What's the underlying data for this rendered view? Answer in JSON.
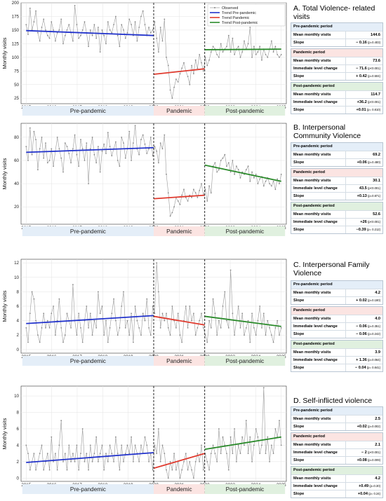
{
  "period_labels": [
    "Pre-pandemic",
    "Pandemic",
    "Post-pandemic"
  ],
  "legend": [
    {
      "label": "Observed",
      "color": "#9a9a9a"
    },
    {
      "label": "Trend Pre-pandemic",
      "color": "#2233cc"
    },
    {
      "label": "Trend Pandemic",
      "color": "#e03a2e"
    },
    {
      "label": "Trend Post-pandemic",
      "color": "#2a8a2a"
    }
  ],
  "colors": {
    "pre_band": "#e4eef8",
    "pandemic_band": "#fbe4e2",
    "post_band": "#e0f0df",
    "observed": "#9a9a9a"
  },
  "panels": [
    {
      "title": "A. Total Violence- related visits",
      "stats": [
        {
          "header": "Pre-pandemic period",
          "band": "pre",
          "rows": [
            {
              "label": "Mean monthly visits",
              "value": "144.6",
              "p": ""
            },
            {
              "label": "Slope",
              "value": "− 0.16",
              "p": "(p=0.403)"
            }
          ]
        },
        {
          "header": "Pandemic period",
          "band": "pan",
          "rows": [
            {
              "label": "Mean monthly visits",
              "value": "73.6",
              "p": ""
            },
            {
              "label": "Immediate level change",
              "value": "− 71.6",
              "p": "(p<0.001)"
            },
            {
              "label": "Slope",
              "value": "+ 0.42",
              "p": "(p=0.504)"
            }
          ]
        },
        {
          "header": "Post-pandemic period",
          "band": "post",
          "rows": [
            {
              "label": "Mean monthly visits",
              "value": "114.7",
              "p": ""
            },
            {
              "label": "Immediate level change",
              "value": "+36.2",
              "p": "(p<0.001)"
            },
            {
              "label": "Slope",
              "value": "+0.01",
              "p": "(p= 0.810)"
            }
          ]
        }
      ]
    },
    {
      "title": "B. Interpersonal Community Violence",
      "stats": [
        {
          "header": "Pre-pandemic period",
          "band": "pre",
          "rows": [
            {
              "label": "Mean monthly visits",
              "value": "69.2",
              "p": ""
            },
            {
              "label": "Slope",
              "value": "+0.06",
              "p": "(p=0.480)"
            }
          ]
        },
        {
          "header": "Pandemic period",
          "band": "pan",
          "rows": [
            {
              "label": "Mean monthly visits",
              "value": "30.1",
              "p": ""
            },
            {
              "label": "Immediate level change",
              "value": "43.5",
              "p": "(p<0.001)"
            },
            {
              "label": "Slope",
              "value": "+0.13",
              "p": "(p=0.871)"
            }
          ]
        },
        {
          "header": "Post-pandemic period",
          "band": "post",
          "rows": [
            {
              "label": "Mean monthly visits",
              "value": "52.6",
              "p": ""
            },
            {
              "label": "Immediate level change",
              "value": "+26",
              "p": "(p<0.001)"
            },
            {
              "label": "Slope",
              "value": "−0.39",
              "p": "(p= 0.212)"
            }
          ]
        }
      ]
    },
    {
      "title": "C. Interpersonal Family Violence",
      "stats": [
        {
          "header": "Pre-pandemic period",
          "band": "pre",
          "rows": [
            {
              "label": "Mean monthly visits",
              "value": "4.2",
              "p": ""
            },
            {
              "label": "Slope",
              "value": "+ 0.02",
              "p": "(p=0.180)"
            }
          ]
        },
        {
          "header": "Pandemic period",
          "band": "pan",
          "rows": [
            {
              "label": "Mean monthly visits",
              "value": "4.0",
              "p": ""
            },
            {
              "label": "Immediate level change",
              "value": "− 0.06",
              "p": "(p=0.351)"
            },
            {
              "label": "Slope",
              "value": "− 0.06",
              "p": "(p=0.242)"
            }
          ]
        },
        {
          "header": "Post-pandemic period",
          "band": "post",
          "rows": [
            {
              "label": "Mean monthly visits",
              "value": "3.9",
              "p": ""
            },
            {
              "label": "Immediate level change",
              "value": "+ 1.36",
              "p": "(p=0.064)"
            },
            {
              "label": "Slope",
              "value": "− 0.04",
              "p": "(p= 0.841)"
            }
          ]
        }
      ]
    },
    {
      "title": "D. Self-inflicted violence",
      "stats": [
        {
          "header": "Pre-pandemic period",
          "band": "pre",
          "rows": [
            {
              "label": "Mean monthly visits",
              "value": "2.5",
              "p": ""
            },
            {
              "label": "Slope",
              "value": "+0.02",
              "p": "(p=0.002)"
            }
          ]
        },
        {
          "header": "Pandemic period",
          "band": "pan",
          "rows": [
            {
              "label": "Mean monthly visits",
              "value": "2.1",
              "p": ""
            },
            {
              "label": "Immediate level change",
              "value": "− 2",
              "p": "(p<0.001)"
            },
            {
              "label": "Slope",
              "value": "+0.08",
              "p": "(p=0.009)"
            }
          ]
        },
        {
          "header": "Post-pandemic period",
          "band": "post",
          "rows": [
            {
              "label": "Mean monthly visits",
              "value": "4.2",
              "p": ""
            },
            {
              "label": "Immediate level change",
              "value": "+0.49",
              "p": "(p=0.30)"
            },
            {
              "label": "Slope",
              "value": "+0.04",
              "p": "(p= 0.24)"
            }
          ]
        }
      ]
    }
  ],
  "chart_data": [
    {
      "type": "line",
      "ylabel": "Monthly visits",
      "ylim": [
        15,
        200
      ],
      "yticks": [
        25,
        50,
        75,
        100,
        125,
        150,
        175,
        200
      ],
      "xlim": [
        2014.8,
        2025.2
      ],
      "xticks": [
        2015,
        2016,
        2017,
        2018,
        2019,
        2020,
        2021,
        2022,
        2023,
        2024,
        2025
      ],
      "breaks": [
        2020.0,
        2022.0
      ],
      "show_legend": true,
      "observed": [
        160,
        142,
        190,
        150,
        165,
        185,
        145,
        130,
        155,
        170,
        150,
        140,
        135,
        165,
        150,
        130,
        145,
        150,
        170,
        125,
        140,
        150,
        160,
        145,
        130,
        195,
        160,
        135,
        140,
        150,
        165,
        145,
        120,
        150,
        140,
        160,
        135,
        155,
        110,
        150,
        140,
        125,
        165,
        150,
        145,
        160,
        175,
        140,
        120,
        160,
        150,
        135,
        145,
        170,
        160,
        140,
        165,
        130,
        155,
        175,
        185,
        160,
        140,
        155,
        145,
        150,
        165,
        135,
        110,
        155,
        130,
        170,
        100,
        85,
        40,
        25,
        45,
        60,
        55,
        70,
        80,
        90,
        75,
        65,
        50,
        85,
        70,
        95,
        80,
        105,
        90,
        75,
        100,
        85,
        95,
        110,
        120,
        115,
        105,
        100,
        125,
        110,
        115,
        120,
        140,
        110,
        135,
        105,
        115,
        120,
        100,
        110,
        130,
        115,
        125,
        155,
        100,
        120,
        105,
        110,
        120,
        95,
        115,
        105,
        100,
        115,
        130,
        110,
        120,
        105,
        100,
        105
      ],
      "trends": {
        "pre": [
          149,
          140
        ],
        "pandemic": [
          69,
          79
        ],
        "post": [
          114,
          115
        ]
      }
    },
    {
      "type": "line",
      "ylabel": "Monthly visits",
      "ylim": [
        5,
        92
      ],
      "yticks": [
        20,
        40,
        60,
        80
      ],
      "xlim": [
        2014.8,
        2025.2
      ],
      "xticks": [
        2015,
        2016,
        2017,
        2018,
        2019,
        2020,
        2021,
        2022,
        2023,
        2024,
        2025
      ],
      "breaks": [
        2020.0,
        2022.0
      ],
      "show_legend": false,
      "observed": [
        72,
        60,
        88,
        65,
        85,
        78,
        52,
        70,
        80,
        62,
        75,
        58,
        60,
        70,
        55,
        68,
        80,
        70,
        62,
        50,
        75,
        72,
        66,
        58,
        70,
        82,
        65,
        55,
        78,
        70,
        60,
        75,
        40,
        70,
        80,
        65,
        58,
        72,
        50,
        68,
        74,
        66,
        84,
        72,
        64,
        70,
        76,
        60,
        55,
        80,
        75,
        62,
        70,
        85,
        60,
        75,
        90,
        70,
        65,
        78,
        82,
        74,
        66,
        70,
        80,
        64,
        72,
        68,
        58,
        75,
        70,
        82,
        48,
        32,
        12,
        15,
        20,
        28,
        25,
        22,
        30,
        35,
        28,
        25,
        30,
        28,
        35,
        32,
        28,
        34,
        40,
        30,
        35,
        25,
        38,
        32,
        55,
        58,
        50,
        52,
        60,
        62,
        65,
        55,
        58,
        50,
        60,
        48,
        55,
        52,
        45,
        50,
        48,
        52,
        55,
        42,
        50,
        45,
        48,
        40,
        44,
        46,
        38,
        42,
        45,
        40,
        38,
        42,
        35,
        44,
        40,
        48
      ],
      "trends": {
        "pre": [
          67,
          71
        ],
        "pandemic": [
          27,
          30
        ],
        "post": [
          56,
          42
        ]
      }
    },
    {
      "type": "line",
      "ylabel": "Monthly visits",
      "ylim": [
        -0.5,
        12.5
      ],
      "yticks": [
        0,
        2,
        4,
        6,
        8,
        10,
        12
      ],
      "xlim": [
        2014.8,
        2025.2
      ],
      "xticks": [
        2015,
        2016,
        2017,
        2018,
        2019,
        2020,
        2021,
        2022,
        2023,
        2024,
        2025
      ],
      "breaks": [
        2020.0,
        2022.0
      ],
      "show_legend": false,
      "observed": [
        3,
        1,
        5,
        8,
        7,
        4,
        2,
        1,
        3,
        5,
        3,
        4,
        3,
        5,
        6,
        2,
        4,
        7,
        3,
        1,
        2,
        5,
        4,
        3,
        9,
        4,
        2,
        5,
        3,
        1,
        4,
        6,
        3,
        5,
        2,
        4,
        3,
        8,
        5,
        6,
        2,
        4,
        1,
        3,
        5,
        7,
        4,
        2,
        3,
        6,
        8,
        3,
        4,
        2,
        5,
        1,
        6,
        4,
        3,
        2,
        5,
        4,
        7,
        3,
        2,
        6,
        5,
        12,
        8,
        3,
        5,
        4,
        5,
        3,
        2,
        6,
        4,
        3,
        5,
        2,
        1,
        4,
        6,
        3,
        6,
        4,
        5,
        2,
        3,
        4,
        5,
        3,
        2,
        1,
        4,
        3,
        7,
        5,
        2,
        4,
        3,
        6,
        8,
        4,
        3,
        11,
        5,
        2,
        4,
        6,
        3,
        5,
        2,
        3,
        4,
        1,
        5,
        3,
        2,
        4,
        6,
        3,
        5,
        2,
        4,
        3,
        2,
        1,
        3,
        4,
        2,
        3
      ],
      "trends": {
        "pre": [
          3.6,
          4.7
        ],
        "pandemic": [
          4.6,
          3.4
        ],
        "post": [
          4.6,
          3.2
        ]
      }
    },
    {
      "type": "line",
      "ylabel": "Monthly visits",
      "ylim": [
        -0.4,
        11.2
      ],
      "yticks": [
        0,
        2,
        4,
        6,
        8,
        10
      ],
      "xlim": [
        2014.8,
        2025.2
      ],
      "xticks": [
        2015,
        2016,
        2017,
        2018,
        2019,
        2020,
        2021,
        2022,
        2023,
        2024,
        2025
      ],
      "breaks": [
        2020.0,
        2022.0
      ],
      "show_legend": false,
      "observed": [
        4,
        3,
        1,
        2,
        3,
        1,
        2,
        3,
        4,
        1,
        2,
        3,
        1,
        5,
        2,
        3,
        1,
        4,
        7,
        2,
        3,
        1,
        4,
        2,
        3,
        2,
        4,
        1,
        3,
        6,
        2,
        3,
        1,
        4,
        2,
        3,
        5,
        2,
        3,
        4,
        1,
        3,
        2,
        4,
        3,
        2,
        5,
        3,
        1,
        4,
        2,
        3,
        4,
        3,
        5,
        2,
        4,
        3,
        2,
        4,
        3,
        5,
        4,
        2,
        3,
        1,
        4,
        3,
        6,
        2,
        4,
        3,
        1,
        0,
        2,
        1,
        3,
        1,
        2,
        0,
        1,
        2,
        3,
        1,
        2,
        1,
        0,
        2,
        3,
        2,
        4,
        1,
        3,
        2,
        1,
        3,
        4,
        3,
        2,
        6,
        3,
        5,
        4,
        3,
        1,
        5,
        3,
        6,
        2,
        4,
        3,
        5,
        4,
        7,
        3,
        5,
        2,
        4,
        6,
        5,
        3,
        4,
        11,
        3,
        5,
        2,
        4,
        3,
        6,
        5,
        7,
        4
      ],
      "trends": {
        "pre": [
          1.9,
          3.1
        ],
        "pandemic": [
          1.2,
          3.0
        ],
        "post": [
          3.5,
          5.0
        ]
      }
    }
  ]
}
